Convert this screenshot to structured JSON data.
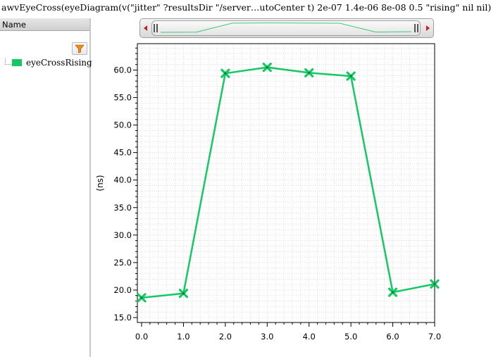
{
  "window_title": "awvEyeCross(eyeDiagram(v(\"jitter\" ?resultsDir \"/server…utoCenter t) 2e-07 1.4e-06 8e-08 0.5 \"rising\" nil nil)",
  "panel": {
    "header_label": "Name",
    "filter_icon": "filter-funnel-icon",
    "traces": [
      {
        "label": "eyeCrossRising",
        "color": "#14c864"
      }
    ]
  },
  "colors": {
    "trace": "#14c864",
    "grid": "#c8c8c8",
    "overview_line": "#3cc878"
  },
  "chart_data": {
    "type": "line",
    "title": "",
    "xlabel": "",
    "ylabel": "(ns)",
    "x": [
      0.0,
      1.0,
      2.0,
      3.0,
      4.0,
      5.0,
      6.0,
      7.0
    ],
    "series": [
      {
        "name": "eyeCrossRising",
        "values": [
          18.6,
          19.4,
          59.4,
          60.5,
          59.5,
          58.9,
          19.6,
          21.1
        ],
        "marker": "x"
      }
    ],
    "xlim": [
      0.0,
      7.0
    ],
    "ylim": [
      15.0,
      65.0
    ],
    "xticks": [
      "0.0",
      "1.0",
      "2.0",
      "3.0",
      "4.0",
      "5.0",
      "6.0",
      "7.0"
    ],
    "yticks": [
      "15.0",
      "20.0",
      "25.0",
      "30.0",
      "35.0",
      "40.0",
      "45.0",
      "50.0",
      "55.0",
      "60.0"
    ],
    "grid": true
  }
}
